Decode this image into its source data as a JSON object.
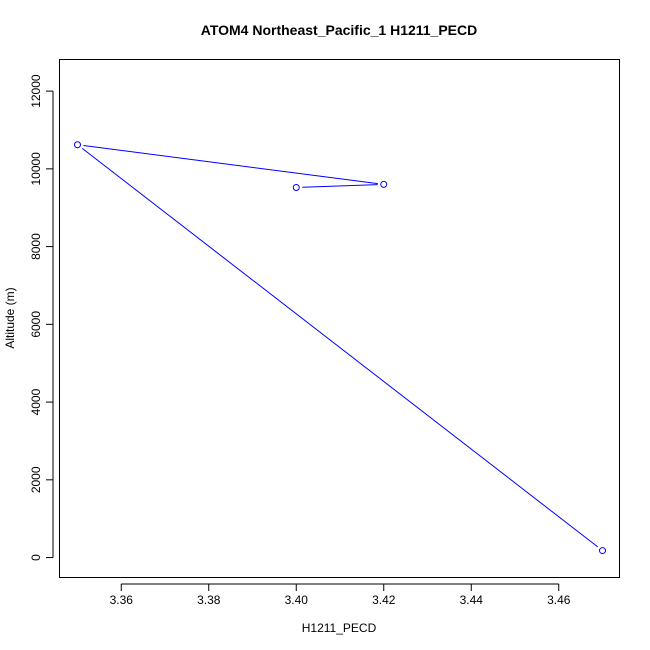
{
  "chart_data": {
    "type": "line",
    "title": "ATOM4 Northeast_Pacific_1 H1211_PECD",
    "xlabel": "H1211_PECD",
    "ylabel": "Altitude (m)",
    "xlim": [
      3.346,
      3.474
    ],
    "ylim": [
      -500,
      12800
    ],
    "x_ticks": [
      3.36,
      3.38,
      3.4,
      3.42,
      3.44,
      3.46
    ],
    "x_tick_labels": [
      "3.36",
      "3.38",
      "3.40",
      "3.42",
      "3.44",
      "3.46"
    ],
    "y_ticks": [
      0,
      2000,
      4000,
      6000,
      8000,
      10000,
      12000
    ],
    "y_tick_labels": [
      "0",
      "2000",
      "4000",
      "6000",
      "8000",
      "10000",
      "12000"
    ],
    "series": [
      {
        "color": "#0000ff",
        "marker": "open-circle",
        "points": [
          {
            "x": 3.4,
            "y": 9520
          },
          {
            "x": 3.42,
            "y": 9600
          },
          {
            "x": 3.35,
            "y": 10620
          },
          {
            "x": 3.47,
            "y": 180
          }
        ]
      }
    ],
    "grid": false,
    "legend": "none"
  }
}
